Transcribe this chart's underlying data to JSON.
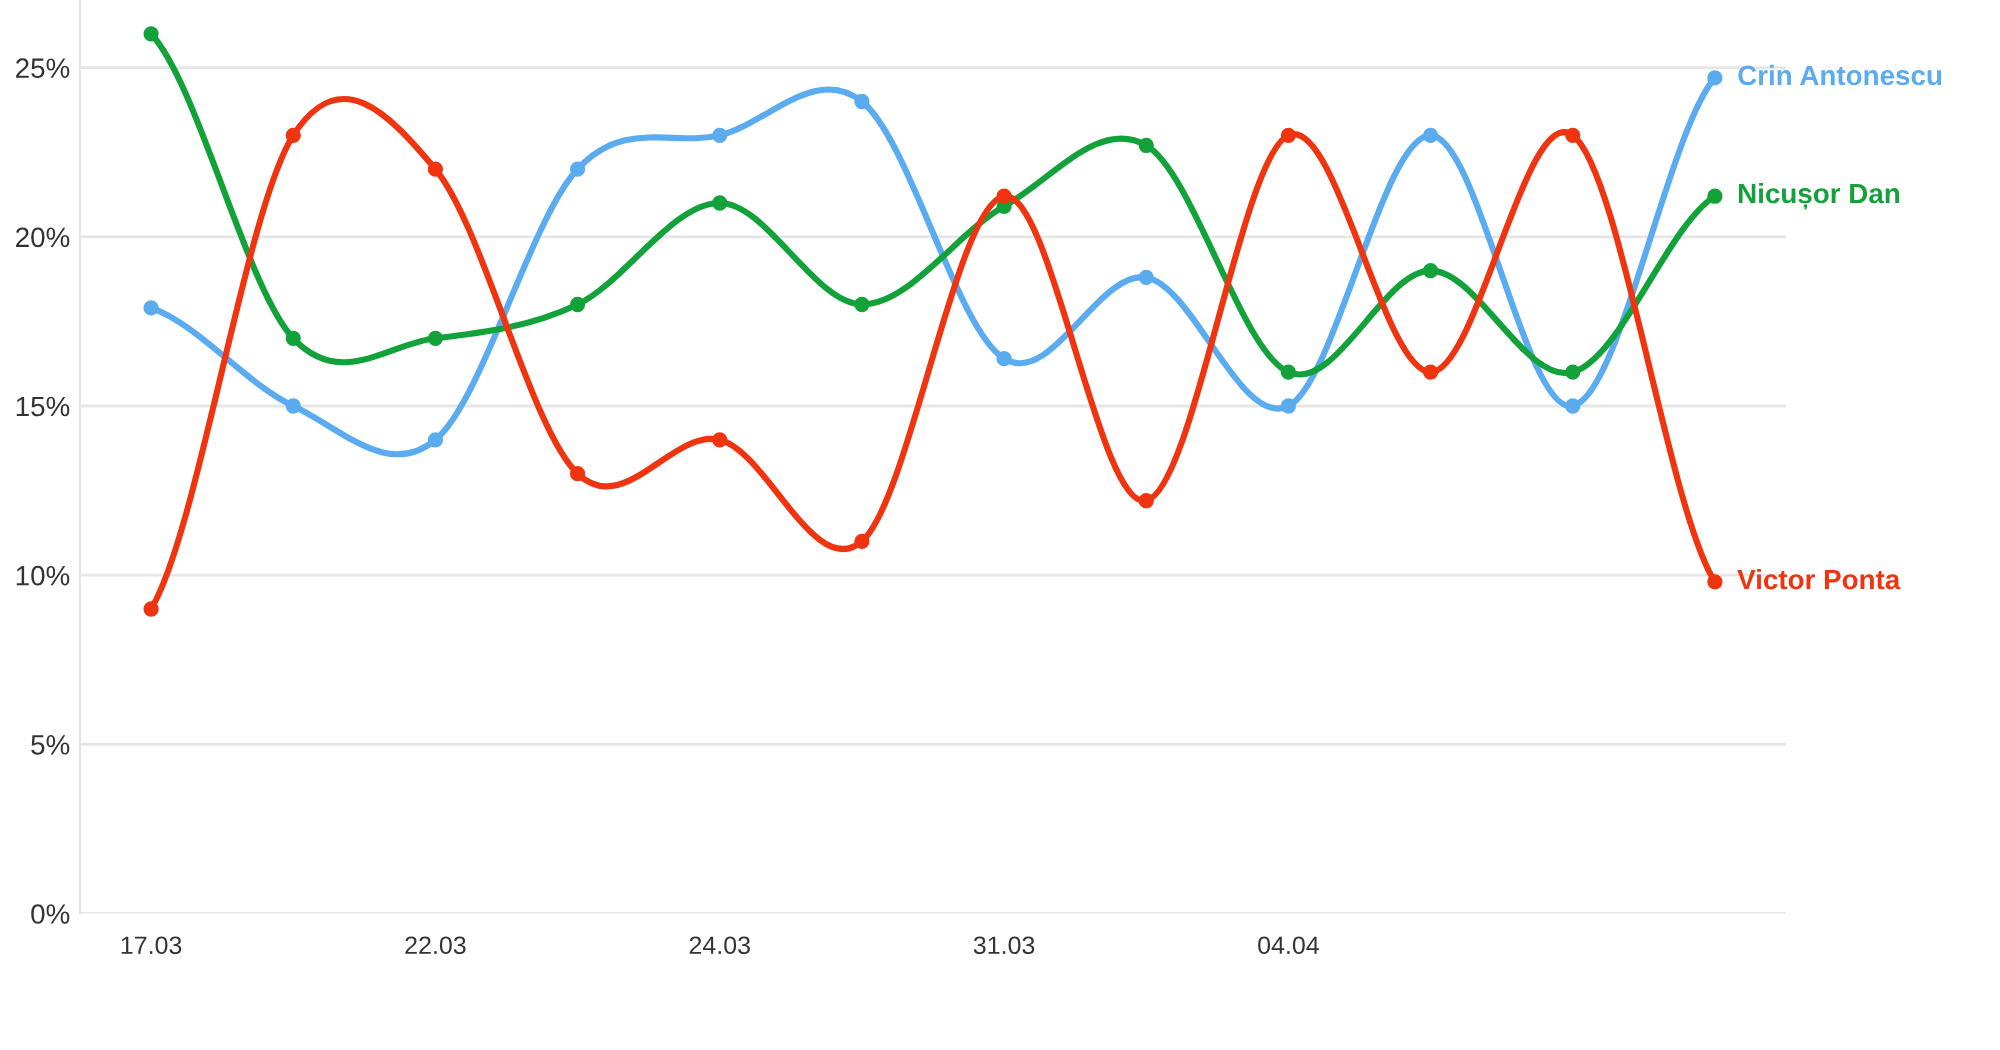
{
  "chart_data": {
    "type": "line",
    "categories": [
      "17.03",
      null,
      "22.03",
      null,
      "24.03",
      null,
      "31.03",
      null,
      "04.04",
      null,
      null,
      null
    ],
    "series": [
      {
        "name": "Crin Antonescu",
        "color": "#5aabf0",
        "values": [
          17.9,
          15,
          14,
          22,
          23,
          24,
          16.4,
          18.8,
          15,
          23,
          15,
          24.7
        ]
      },
      {
        "name": "Nicușor Dan",
        "color": "#13a23a",
        "values": [
          26,
          17,
          17,
          18,
          21,
          18,
          20.9,
          22.7,
          16,
          19,
          16,
          21.2
        ]
      },
      {
        "name": "Victor Ponta",
        "color": "#f0340f",
        "values": [
          9,
          23,
          22,
          13,
          14,
          11,
          21.2,
          12.2,
          23,
          16,
          23,
          9.8
        ]
      }
    ],
    "ylim": [
      0,
      27
    ],
    "yticks": [
      {
        "value": 0,
        "label": "0%"
      },
      {
        "value": 5,
        "label": "5%"
      },
      {
        "value": 10,
        "label": "10%"
      },
      {
        "value": 15,
        "label": "15%"
      },
      {
        "value": 20,
        "label": "20%"
      },
      {
        "value": 25,
        "label": "25%"
      }
    ],
    "grid": "y",
    "legend": false,
    "marker": "circle",
    "line_style": "solid"
  }
}
